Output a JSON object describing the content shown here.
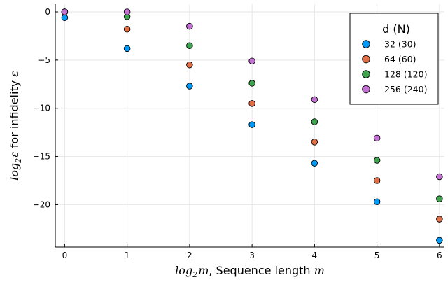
{
  "chart_data": {
    "type": "scatter",
    "xlabel": {
      "math_prefix": "log",
      "math_sub": "2",
      "math_var": "m",
      "text": ", Sequence length ",
      "math_suffix": "m"
    },
    "ylabel": {
      "math_prefix": "log",
      "math_sub": "2",
      "math_var": "ε",
      "text": " for infidelity ",
      "math_suffix": "ε"
    },
    "xlim": [
      -0.15,
      6.08
    ],
    "ylim": [
      -24.4,
      0.8
    ],
    "xticks": [
      0,
      1,
      2,
      3,
      4,
      5,
      6
    ],
    "yticks": [
      0,
      -5,
      -10,
      -15,
      -20
    ],
    "grid": true,
    "legend": {
      "title": "d (N)",
      "position": "top-right"
    },
    "series": [
      {
        "name": "32 (30)",
        "color": "#009AFA",
        "x": [
          0,
          1,
          2,
          3,
          4,
          5,
          6
        ],
        "y": [
          -0.6,
          -3.8,
          -7.7,
          -11.7,
          -15.7,
          -19.7,
          -23.7
        ]
      },
      {
        "name": "64 (60)",
        "color": "#E36F47",
        "x": [
          0,
          1,
          2,
          3,
          4,
          5,
          6
        ],
        "y": [
          0,
          -1.8,
          -5.5,
          -9.5,
          -13.5,
          -17.5,
          -21.5
        ]
      },
      {
        "name": "128 (120)",
        "color": "#3EA44E",
        "x": [
          0,
          1,
          2,
          3,
          4,
          5,
          6
        ],
        "y": [
          0,
          -0.5,
          -3.5,
          -7.4,
          -11.4,
          -15.4,
          -19.4
        ]
      },
      {
        "name": "256 (240)",
        "color": "#C371D2",
        "x": [
          0,
          1,
          2,
          3,
          4,
          5,
          6
        ],
        "y": [
          0,
          0,
          -1.5,
          -5.1,
          -9.1,
          -13.1,
          -17.1
        ]
      }
    ]
  }
}
